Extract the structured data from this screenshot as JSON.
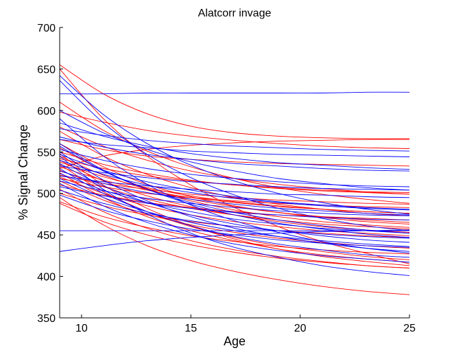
{
  "chart_data": {
    "type": "line",
    "title": "Alatcorr invage",
    "xlabel": "Age",
    "ylabel": "% Signal Change",
    "xlim": [
      9,
      25
    ],
    "ylim": [
      350,
      700
    ],
    "xticks": [
      10,
      15,
      20,
      25
    ],
    "yticks": [
      350,
      400,
      450,
      500,
      550,
      600,
      650,
      700
    ],
    "grid": false,
    "legend": "none",
    "colors": {
      "red": "#ff0000",
      "blue": "#0000ff",
      "axis": "#000000"
    },
    "x": [
      9,
      11,
      13,
      15,
      17,
      19,
      21,
      23,
      25
    ],
    "series": [
      {
        "color": "red",
        "values": [
          655,
          620,
          596,
          581,
          573,
          569,
          567,
          566,
          566
        ]
      },
      {
        "color": "red",
        "values": [
          650,
          590,
          545,
          510,
          483,
          460,
          442,
          428,
          415
        ]
      },
      {
        "color": "red",
        "values": [
          610,
          576,
          551,
          532,
          518,
          507,
          499,
          493,
          488
        ]
      },
      {
        "color": "red",
        "values": [
          598,
          586,
          576,
          569,
          564,
          560,
          557,
          555,
          554
        ]
      },
      {
        "color": "red",
        "values": [
          575,
          545,
          523,
          507,
          495,
          487,
          481,
          476,
          473
        ]
      },
      {
        "color": "red",
        "values": [
          565,
          553,
          545,
          541,
          538,
          536,
          535,
          534,
          533
        ]
      },
      {
        "color": "red",
        "values": [
          555,
          527,
          506,
          491,
          480,
          472,
          466,
          462,
          459
        ]
      },
      {
        "color": "red",
        "values": [
          550,
          535,
          524,
          516,
          510,
          506,
          503,
          501,
          499
        ]
      },
      {
        "color": "red",
        "values": [
          548,
          510,
          482,
          461,
          445,
          433,
          424,
          418,
          413
        ]
      },
      {
        "color": "red",
        "values": [
          545,
          522,
          505,
          493,
          484,
          477,
          472,
          468,
          465
        ]
      },
      {
        "color": "red",
        "values": [
          542,
          530,
          521,
          515,
          510,
          507,
          504,
          502,
          501
        ]
      },
      {
        "color": "red",
        "values": [
          540,
          515,
          497,
          484,
          474,
          466,
          460,
          456,
          453
        ]
      },
      {
        "color": "red",
        "values": [
          538,
          520,
          507,
          497,
          490,
          485,
          481,
          478,
          476
        ]
      },
      {
        "color": "red",
        "values": [
          535,
          502,
          478,
          460,
          447,
          437,
          430,
          424,
          420
        ]
      },
      {
        "color": "red",
        "values": [
          532,
          516,
          504,
          495,
          489,
          484,
          481,
          478,
          476
        ]
      },
      {
        "color": "red",
        "values": [
          530,
          545,
          553,
          558,
          561,
          563,
          564,
          565,
          565
        ]
      },
      {
        "color": "red",
        "values": [
          528,
          508,
          493,
          482,
          474,
          468,
          463,
          460,
          457
        ]
      },
      {
        "color": "red",
        "values": [
          525,
          495,
          472,
          455,
          443,
          433,
          426,
          421,
          417
        ]
      },
      {
        "color": "red",
        "values": [
          522,
          512,
          505,
          499,
          495,
          492,
          490,
          488,
          487
        ]
      },
      {
        "color": "red",
        "values": [
          520,
          500,
          485,
          474,
          466,
          460,
          455,
          452,
          449
        ]
      },
      {
        "color": "red",
        "values": [
          518,
          508,
          500,
          495,
          491,
          488,
          486,
          484,
          483
        ]
      },
      {
        "color": "red",
        "values": [
          515,
          492,
          475,
          462,
          453,
          446,
          441,
          437,
          434
        ]
      },
      {
        "color": "red",
        "values": [
          510,
          498,
          489,
          483,
          478,
          474,
          472,
          470,
          468
        ]
      },
      {
        "color": "red",
        "values": [
          505,
          478,
          458,
          443,
          432,
          424,
          418,
          413,
          410
        ]
      },
      {
        "color": "red",
        "values": [
          500,
          485,
          474,
          466,
          460,
          455,
          452,
          449,
          447
        ]
      },
      {
        "color": "red",
        "values": [
          495,
          462,
          437,
          419,
          406,
          396,
          388,
          382,
          378
        ]
      },
      {
        "color": "red",
        "values": [
          490,
          472,
          459,
          449,
          442,
          436,
          432,
          429,
          427
        ]
      },
      {
        "color": "red",
        "values": [
          488,
          466,
          450,
          438,
          429,
          422,
          417,
          413,
          410
        ]
      },
      {
        "color": "red",
        "values": [
          580,
          557,
          540,
          527,
          518,
          511,
          506,
          502,
          499
        ]
      },
      {
        "color": "red",
        "values": [
          560,
          532,
          511,
          496,
          485,
          477,
          471,
          466,
          463
        ]
      },
      {
        "color": "blue",
        "values": [
          620,
          620,
          621,
          621,
          621,
          621,
          621,
          622,
          622
        ]
      },
      {
        "color": "blue",
        "values": [
          642,
          595,
          560,
          534,
          515,
          500,
          489,
          481,
          475
        ]
      },
      {
        "color": "blue",
        "values": [
          636,
          585,
          547,
          519,
          498,
          482,
          470,
          461,
          455
        ]
      },
      {
        "color": "blue",
        "values": [
          600,
          573,
          553,
          538,
          527,
          518,
          512,
          507,
          504
        ]
      },
      {
        "color": "blue",
        "values": [
          585,
          569,
          557,
          548,
          542,
          537,
          534,
          531,
          529
        ]
      },
      {
        "color": "blue",
        "values": [
          568,
          556,
          547,
          541,
          536,
          533,
          530,
          528,
          527
        ]
      },
      {
        "color": "blue",
        "values": [
          560,
          528,
          505,
          487,
          474,
          464,
          457,
          451,
          447
        ]
      },
      {
        "color": "blue",
        "values": [
          553,
          540,
          530,
          523,
          518,
          514,
          511,
          509,
          508
        ]
      },
      {
        "color": "blue",
        "values": [
          550,
          516,
          491,
          472,
          458,
          448,
          440,
          434,
          430
        ]
      },
      {
        "color": "blue",
        "values": [
          547,
          528,
          514,
          504,
          496,
          490,
          486,
          483,
          481
        ]
      },
      {
        "color": "blue",
        "values": [
          545,
          505,
          475,
          452,
          435,
          423,
          413,
          406,
          401
        ]
      },
      {
        "color": "blue",
        "values": [
          540,
          523,
          510,
          501,
          494,
          489,
          485,
          482,
          480
        ]
      },
      {
        "color": "blue",
        "values": [
          536,
          509,
          489,
          474,
          463,
          455,
          449,
          444,
          441
        ]
      },
      {
        "color": "blue",
        "values": [
          533,
          525,
          519,
          514,
          511,
          508,
          506,
          505,
          504
        ]
      },
      {
        "color": "blue",
        "values": [
          530,
          500,
          478,
          461,
          448,
          439,
          432,
          426,
          423
        ]
      },
      {
        "color": "blue",
        "values": [
          527,
          512,
          501,
          493,
          487,
          482,
          479,
          476,
          474
        ]
      },
      {
        "color": "blue",
        "values": [
          524,
          504,
          489,
          478,
          469,
          463,
          458,
          455,
          452
        ]
      },
      {
        "color": "blue",
        "values": [
          521,
          514,
          509,
          505,
          502,
          499,
          498,
          496,
          495
        ]
      },
      {
        "color": "blue",
        "values": [
          518,
          495,
          478,
          465,
          455,
          448,
          443,
          439,
          436
        ]
      },
      {
        "color": "blue",
        "values": [
          515,
          503,
          494,
          488,
          483,
          479,
          476,
          474,
          473
        ]
      },
      {
        "color": "blue",
        "values": [
          512,
          485,
          465,
          450,
          439,
          431,
          425,
          421,
          417
        ]
      },
      {
        "color": "blue",
        "values": [
          508,
          497,
          488,
          482,
          477,
          474,
          471,
          469,
          468
        ]
      },
      {
        "color": "blue",
        "values": [
          504,
          488,
          476,
          467,
          460,
          455,
          451,
          448,
          446
        ]
      },
      {
        "color": "blue",
        "values": [
          498,
          480,
          467,
          457,
          450,
          444,
          440,
          437,
          435
        ]
      },
      {
        "color": "blue",
        "values": [
          455,
          455,
          455,
          455,
          455,
          455,
          455,
          455,
          455
        ]
      },
      {
        "color": "blue",
        "values": [
          430,
          437,
          443,
          447,
          450,
          452,
          454,
          455,
          456
        ]
      },
      {
        "color": "blue",
        "values": [
          578,
          570,
          564,
          560,
          557,
          555,
          553,
          552,
          551
        ]
      },
      {
        "color": "blue",
        "values": [
          565,
          559,
          555,
          551,
          549,
          547,
          546,
          545,
          544
        ]
      },
      {
        "color": "blue",
        "values": [
          590,
          545,
          511,
          486,
          467,
          453,
          442,
          434,
          428
        ]
      },
      {
        "color": "blue",
        "values": [
          557,
          527,
          505,
          489,
          477,
          468,
          461,
          456,
          452
        ]
      }
    ]
  }
}
